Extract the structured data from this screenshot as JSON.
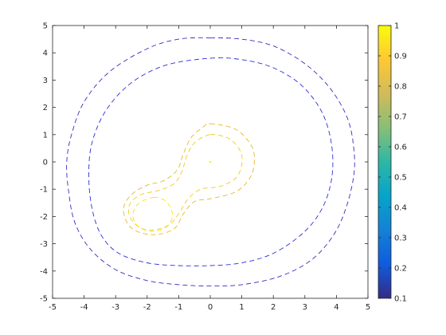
{
  "chart_data": {
    "type": "contour",
    "title": "",
    "xlabel": "",
    "ylabel": "",
    "xlim": [
      -5,
      5
    ],
    "ylim": [
      -5,
      5
    ],
    "xticks": [
      "-5",
      "-4",
      "-3",
      "-2",
      "-1",
      "0",
      "1",
      "2",
      "3",
      "4",
      "5"
    ],
    "yticks": [
      "-5",
      "-4",
      "-3",
      "-2",
      "-1",
      "0",
      "1",
      "2",
      "3",
      "4",
      "5"
    ],
    "grid": false,
    "line_style": "dashed",
    "colormap": "parula",
    "colorbar": {
      "limits": [
        0.1,
        1
      ],
      "ticks": [
        "0.1",
        "0.2",
        "0.3",
        "0.4",
        "0.5",
        "0.6",
        "0.7",
        "0.8",
        "0.9",
        "1"
      ],
      "stops": [
        "#352a87",
        "#0f5cdd",
        "#1481d6",
        "#06a4ca",
        "#2eb7a4",
        "#87bf77",
        "#d1bb59",
        "#fec832",
        "#f9fb0e"
      ]
    },
    "contours": [
      {
        "level": 0.1,
        "color": "#3a2bc0",
        "points": [
          [
            0,
            4.55
          ],
          [
            1,
            4.5
          ],
          [
            2,
            4.25
          ],
          [
            3,
            3.6
          ],
          [
            3.8,
            2.7
          ],
          [
            4.35,
            1.6
          ],
          [
            4.55,
            0.5
          ],
          [
            4.55,
            -0.5
          ],
          [
            4.3,
            -1.7
          ],
          [
            3.9,
            -2.7
          ],
          [
            3.2,
            -3.6
          ],
          [
            2.2,
            -4.2
          ],
          [
            1,
            -4.5
          ],
          [
            0,
            -4.55
          ],
          [
            -1,
            -4.5
          ],
          [
            -2,
            -4.35
          ],
          [
            -3,
            -3.95
          ],
          [
            -3.8,
            -3.2
          ],
          [
            -4.3,
            -2.2
          ],
          [
            -4.5,
            -1
          ],
          [
            -4.55,
            0
          ],
          [
            -4.4,
            1
          ],
          [
            -4,
            2.2
          ],
          [
            -3.2,
            3.3
          ],
          [
            -2,
            4.15
          ],
          [
            -1,
            4.5
          ]
        ]
      },
      {
        "level": 0.2,
        "color": "#2a2ee0",
        "points": [
          [
            0,
            3.8
          ],
          [
            1,
            3.75
          ],
          [
            2,
            3.45
          ],
          [
            2.9,
            2.8
          ],
          [
            3.55,
            1.8
          ],
          [
            3.85,
            0.6
          ],
          [
            3.85,
            -0.6
          ],
          [
            3.55,
            -1.7
          ],
          [
            2.95,
            -2.6
          ],
          [
            2,
            -3.35
          ],
          [
            1,
            -3.7
          ],
          [
            0,
            -3.8
          ],
          [
            -1,
            -3.8
          ],
          [
            -2,
            -3.7
          ],
          [
            -2.9,
            -3.35
          ],
          [
            -3.45,
            -2.7
          ],
          [
            -3.75,
            -1.7
          ],
          [
            -3.85,
            -0.5
          ],
          [
            -3.75,
            0.7
          ],
          [
            -3.3,
            1.9
          ],
          [
            -2.5,
            2.9
          ],
          [
            -1.4,
            3.55
          ]
        ]
      },
      {
        "level": 0.8,
        "color": "#e6b82b",
        "points": [
          [
            0,
            1.4
          ],
          [
            0.8,
            1.2
          ],
          [
            1.3,
            0.6
          ],
          [
            1.4,
            0
          ],
          [
            1.25,
            -0.6
          ],
          [
            0.8,
            -1.1
          ],
          [
            0,
            -1.35
          ],
          [
            -0.5,
            -1.45
          ],
          [
            -0.85,
            -1.9
          ],
          [
            -1.1,
            -2.4
          ],
          [
            -1.6,
            -2.65
          ],
          [
            -2.2,
            -2.6
          ],
          [
            -2.6,
            -2.3
          ],
          [
            -2.75,
            -1.7
          ],
          [
            -2.5,
            -1.2
          ],
          [
            -2,
            -0.85
          ],
          [
            -1.5,
            -0.7
          ],
          [
            -1.05,
            -0.3
          ],
          [
            -0.85,
            0.3
          ],
          [
            -0.6,
            0.9
          ],
          [
            -0.2,
            1.3
          ]
        ]
      },
      {
        "level": 0.9,
        "color": "#f2ca22",
        "points": [
          [
            0,
            1
          ],
          [
            0.6,
            0.85
          ],
          [
            0.95,
            0.4
          ],
          [
            1,
            -0.1
          ],
          [
            0.8,
            -0.6
          ],
          [
            0.3,
            -0.9
          ],
          [
            -0.3,
            -1
          ],
          [
            -0.7,
            -1.35
          ],
          [
            -1,
            -1.9
          ],
          [
            -1.3,
            -2.3
          ],
          [
            -1.8,
            -2.5
          ],
          [
            -2.25,
            -2.4
          ],
          [
            -2.55,
            -2
          ],
          [
            -2.55,
            -1.55
          ],
          [
            -2.2,
            -1.2
          ],
          [
            -1.65,
            -1.05
          ],
          [
            -1.15,
            -0.8
          ],
          [
            -0.9,
            -0.35
          ],
          [
            -0.75,
            0.2
          ],
          [
            -0.5,
            0.7
          ]
        ]
      },
      {
        "level": 1,
        "color": "#f9e60e",
        "points": [
          [
            -1.8,
            -1.3
          ],
          [
            -1.4,
            -1.45
          ],
          [
            -1.2,
            -1.9
          ],
          [
            -1.35,
            -2.35
          ],
          [
            -1.8,
            -2.55
          ],
          [
            -2.25,
            -2.4
          ],
          [
            -2.45,
            -2
          ],
          [
            -2.3,
            -1.55
          ]
        ]
      }
    ],
    "peak_marker": {
      "x": 0,
      "y": 0,
      "color": "#f9e60e"
    }
  }
}
